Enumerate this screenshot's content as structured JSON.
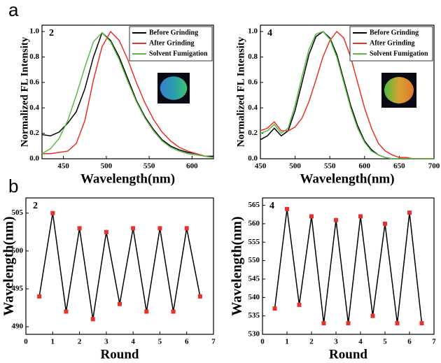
{
  "panel_labels": [
    "a",
    "b"
  ],
  "chart_data": [
    {
      "type": "line",
      "label": "2",
      "xlabel": "Wavelength(nm)",
      "ylabel": "Normalized FL Intensity",
      "x": [
        425,
        435,
        445,
        455,
        465,
        475,
        485,
        495,
        505,
        515,
        525,
        535,
        545,
        555,
        565,
        575,
        585,
        595,
        605,
        615,
        625
      ],
      "series": [
        {
          "name": "Before Grinding",
          "color": "#000000",
          "values": [
            0.19,
            0.18,
            0.21,
            0.28,
            0.37,
            0.55,
            0.8,
            0.99,
            0.93,
            0.8,
            0.63,
            0.46,
            0.33,
            0.23,
            0.15,
            0.1,
            0.07,
            0.05,
            0.04,
            0.02,
            0.02
          ]
        },
        {
          "name": "After Grinding",
          "color": "#e8312a",
          "values": [
            0.04,
            0.04,
            0.05,
            0.06,
            0.12,
            0.3,
            0.62,
            0.88,
            1.0,
            0.93,
            0.78,
            0.6,
            0.44,
            0.31,
            0.21,
            0.14,
            0.09,
            0.06,
            0.04,
            0.02,
            0.01
          ]
        },
        {
          "name": "Solvent Fumigation",
          "color": "#5cb946",
          "values": [
            0.04,
            0.08,
            0.16,
            0.3,
            0.5,
            0.72,
            0.92,
            0.99,
            0.92,
            0.78,
            0.61,
            0.45,
            0.32,
            0.22,
            0.14,
            0.09,
            0.06,
            0.04,
            0.03,
            0.02,
            0.01
          ]
        }
      ],
      "xlim": [
        425,
        625
      ],
      "ylim": [
        0,
        1.05
      ],
      "xticks": [
        450,
        500,
        550,
        600
      ],
      "yticks": [
        {
          "value": 0,
          "label": "0.0"
        },
        0.2,
        0.4,
        0.6,
        0.8,
        {
          "value": 1,
          "label": "1.0"
        }
      ],
      "legend": "upper right"
    },
    {
      "type": "line",
      "label": "4",
      "xlabel": "Wavelength(nm)",
      "ylabel": "Normalized FL Intensity",
      "x": [
        450,
        460,
        470,
        480,
        490,
        500,
        510,
        520,
        530,
        540,
        550,
        560,
        570,
        580,
        590,
        600,
        610,
        620,
        630,
        640,
        650,
        660,
        670,
        680,
        690,
        700
      ],
      "series": [
        {
          "name": "Before Grinding",
          "color": "#000000",
          "values": [
            0.15,
            0.18,
            0.24,
            0.18,
            0.22,
            0.38,
            0.6,
            0.82,
            0.96,
            1.0,
            0.95,
            0.82,
            0.62,
            0.42,
            0.26,
            0.14,
            0.07,
            0.03,
            0.01,
            0,
            0,
            0,
            0,
            0,
            0,
            0
          ]
        },
        {
          "name": "After Grinding",
          "color": "#e8312a",
          "values": [
            0.22,
            0.24,
            0.29,
            0.22,
            0.22,
            0.25,
            0.32,
            0.45,
            0.62,
            0.8,
            0.93,
            1.0,
            0.95,
            0.8,
            0.6,
            0.4,
            0.24,
            0.12,
            0.06,
            0.03,
            0.01,
            0.01,
            0,
            0,
            0,
            0
          ]
        },
        {
          "name": "Solvent Fumigation",
          "color": "#5cb946",
          "values": [
            0.2,
            0.22,
            0.27,
            0.2,
            0.24,
            0.42,
            0.65,
            0.86,
            0.98,
            1.0,
            0.94,
            0.8,
            0.6,
            0.4,
            0.24,
            0.13,
            0.06,
            0.03,
            0.01,
            0,
            0,
            0,
            0,
            0,
            0,
            0
          ]
        }
      ],
      "xlim": [
        450,
        700
      ],
      "ylim": [
        0,
        1.05
      ],
      "xticks": [
        450,
        500,
        550,
        600,
        650,
        700
      ],
      "yticks": [
        {
          "value": 0,
          "label": "0.0"
        },
        0.2,
        0.4,
        0.6,
        0.8,
        {
          "value": 1,
          "label": "1.0"
        }
      ],
      "legend": "upper right"
    },
    {
      "type": "line",
      "label": "2",
      "xlabel": "Round",
      "ylabel": "Wavelength(nm)",
      "x": [
        0.5,
        1,
        1.5,
        2,
        2.5,
        3,
        3.5,
        4,
        4.5,
        5,
        5.5,
        6,
        6.5
      ],
      "series": [
        {
          "color": "#000000",
          "marker_color": "#e8312a",
          "values": [
            494,
            505,
            492,
            503,
            491,
            502.5,
            493,
            503,
            492,
            503,
            492,
            503,
            494
          ]
        }
      ],
      "xlim": [
        0,
        7
      ],
      "ylim": [
        489,
        507
      ],
      "xticks": [
        0,
        1,
        2,
        3,
        4,
        5,
        6,
        7
      ],
      "yticks": [
        490,
        495,
        500,
        505
      ]
    },
    {
      "type": "line",
      "label": "4",
      "xlabel": "Round",
      "ylabel": "Wavelength(nm)",
      "x": [
        0.5,
        1,
        1.5,
        2,
        2.5,
        3,
        3.5,
        4,
        4.5,
        5,
        5.5,
        6,
        6.5
      ],
      "series": [
        {
          "color": "#000000",
          "marker_color": "#e8312a",
          "values": [
            537,
            564,
            538,
            562,
            533,
            561,
            533,
            562,
            535,
            560,
            533,
            563,
            533
          ]
        }
      ],
      "xlim": [
        0,
        7
      ],
      "ylim": [
        530,
        567
      ],
      "xticks": [
        0,
        1,
        2,
        3,
        4,
        5,
        6,
        7
      ],
      "yticks": [
        530,
        535,
        540,
        545,
        550,
        555,
        560,
        565
      ]
    }
  ]
}
